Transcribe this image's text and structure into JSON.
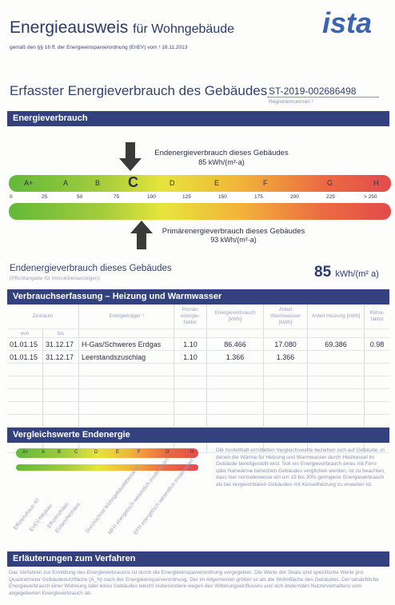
{
  "header": {
    "title_main": "Energieausweis",
    "title_sub": "für Wohngebäude",
    "legal_ref": "gemäß den §§ 16 ff. der Energieeinsparverordnung (EnEV) vom ¹ 18.11.2013",
    "logo_text": "ista"
  },
  "section1": {
    "title": "Erfasster Energieverbrauch des Gebäudes",
    "reg_number": "ST-2019-002686498",
    "reg_label": "Registriernummer ²"
  },
  "bars": {
    "energy": "Energieverbrauch",
    "consumption": "Verbrauchserfassung – Heizung und Warmwasser",
    "comparison": "Vergleichswerte Endenergie",
    "explanation": "Erläuterungen zum Verfahren"
  },
  "scale": {
    "classes": [
      "A+",
      "A",
      "B",
      "C",
      "D",
      "E",
      "F",
      "G",
      "H"
    ],
    "selected": "C",
    "ticks": [
      "0",
      "25",
      "50",
      "75",
      "100",
      "125",
      "150",
      "175",
      "200",
      "225",
      "> 250"
    ],
    "end_label": "Endenergieverbrauch dieses Gebäudes",
    "end_value": "85 kWh/(m²·a)",
    "prim_label": "Primärenergieverbrauch dieses Gebäudes",
    "prim_value": "93 kWh/(m²·a)"
  },
  "summary": {
    "label": "Endenergieverbrauch dieses Gebäudes",
    "sublabel": "(Pflichtangabe für Immobilienanzeigen)",
    "value": "85",
    "unit": "kWh/(m² a)"
  },
  "table": {
    "headers": {
      "zeitraum": "Zeitraum",
      "von": "von",
      "bis": "bis",
      "energietraeger": "Energieträger ³",
      "faktor": "Primär-energie-faktor",
      "verbrauch": "Energieverbrauch [kWh]",
      "warmwasser": "Anteil Warmwasser [kWh]",
      "heizung": "Anteil Heizung [kWh]",
      "klima": "Klima-faktor"
    },
    "rows": [
      {
        "von": "01.01.15",
        "bis": "31.12.17",
        "traeger": "H-Gas/Schweres Erdgas",
        "faktor": "1.10",
        "verbrauch": "86.466",
        "warmwasser": "17.080",
        "heizung": "69.386",
        "klima": "0.98"
      },
      {
        "von": "01.01.15",
        "bis": "31.12.17",
        "traeger": "Leerstandszuschlag",
        "faktor": "1.10",
        "verbrauch": "1.366",
        "warmwasser": "1.366",
        "heizung": "",
        "klima": ""
      }
    ]
  },
  "comparison": {
    "classes": [
      "A+",
      "A",
      "B",
      "C",
      "D",
      "E",
      "F",
      "G",
      "H"
    ],
    "labels": [
      "Effizienzhaus 40",
      "EnEV-Neubau",
      "Effizienzhaus",
      "Einfamilienhaus",
      "Durchschnitt Wohngebäudebestand",
      "MFH energetisch wesentlich modernisiert",
      "EFH energetisch wesentlich modernisiert"
    ],
    "text": "Die modellhaft ermittelten Vergleichswerte beziehen sich auf Gebäude, in denen die Wärme für Heizung und Warmwasser durch Heizkessel im Gebäude bereitgestellt wird. Soll ein Energieverbrauch eines mit Fern- oder Nahwärme beheizten Gebäudes verglichen werden, ist zu beachten, dass hier normalerweise ein um 15 bis 30% geringerer Energieverbrauch als bei vergleichbaren Gebäuden mit Kesselheizung zu erwarten ist."
  },
  "explanation": {
    "text": "Das Verfahren zur Ermittlung des Energieverbrauchs ist durch die Energieeinsparverordnung vorgegeben. Die Werte der Skala sind spezifische Werte pro Quadratmeter Gebäudenutzfläche (A_N) nach der Energieeinsparverordnung. Der im Allgemeinen größer ist als die Wohnfläche des Gebäudes. Der tatsächliche Energieverbrauch einer Wohnung oder eines Gebäudes weicht insbesondere wegen des Witterungseinflusses und sich ändernden Nutzerverhaltens vom angegebenen Energieverbrauch ab."
  },
  "colors": {
    "brand_blue": "#33427e",
    "logo_blue": "#3b63b4",
    "scale_green": "#62b93a",
    "scale_red": "#e24b4b"
  }
}
